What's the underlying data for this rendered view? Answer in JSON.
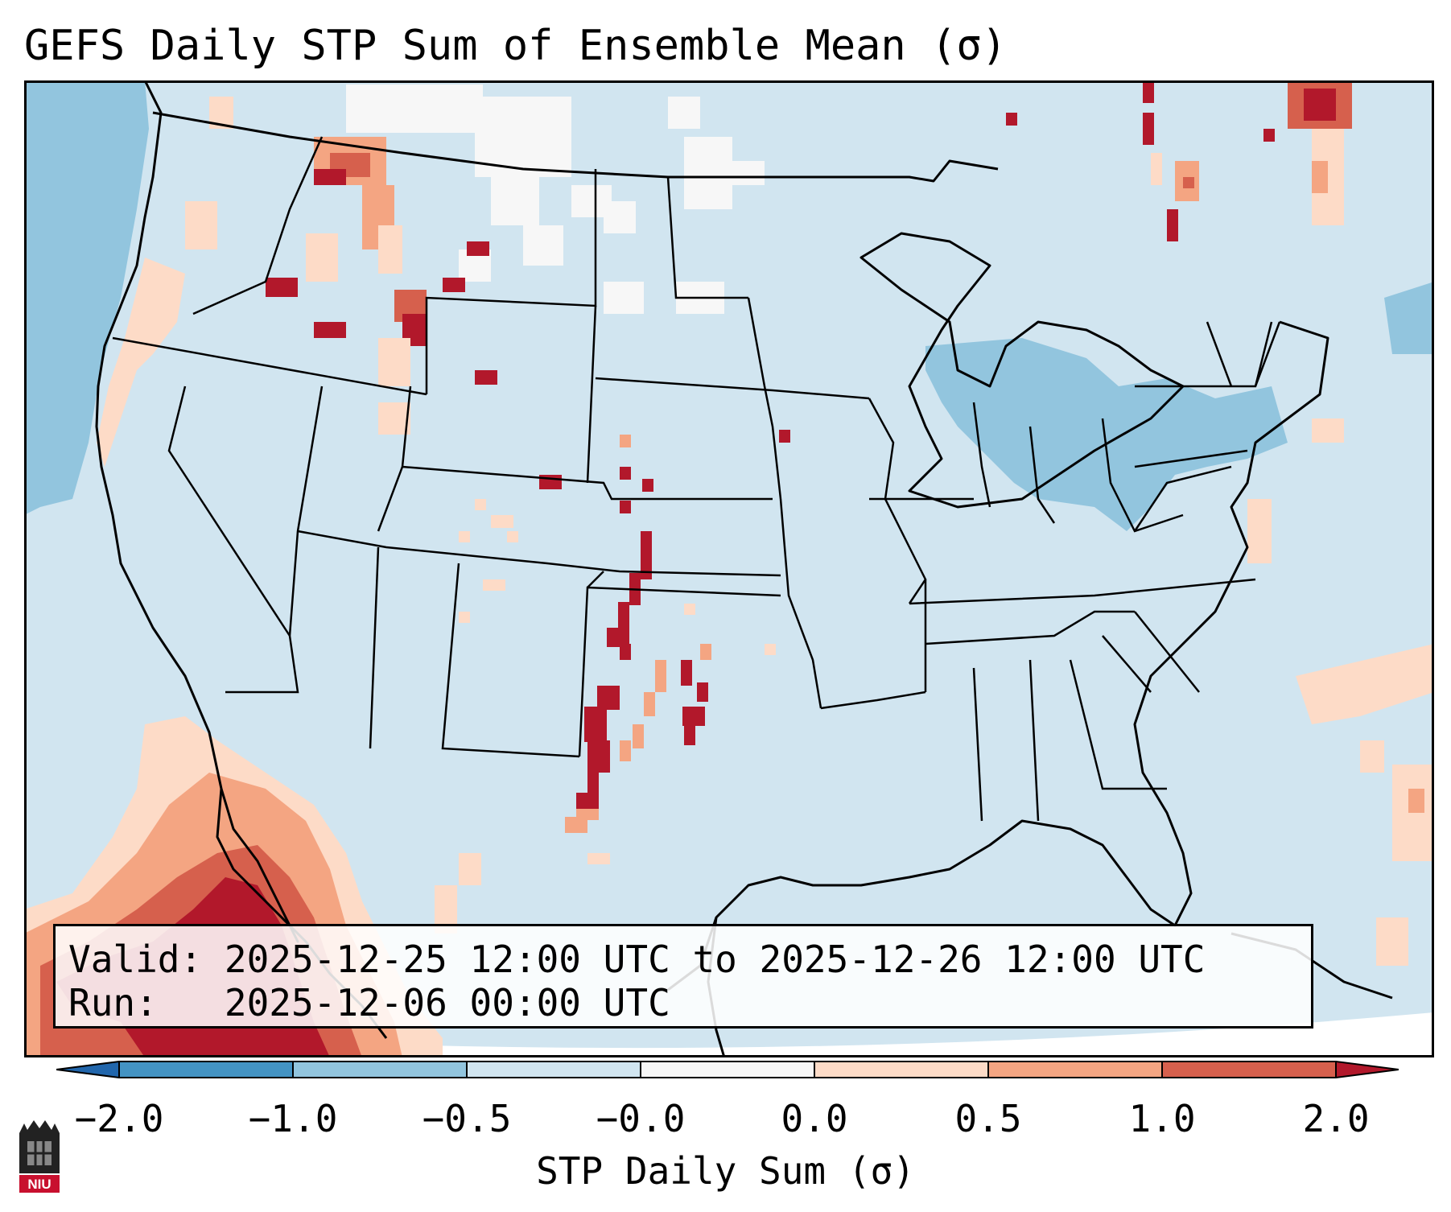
{
  "title": "GEFS Daily STP Sum of Ensemble Mean (σ)",
  "info": {
    "valid_label": "Valid:",
    "valid_value": "2025-12-25 12:00 UTC to 2025-12-26 12:00 UTC",
    "run_label": "Run:",
    "run_value": "2025-12-06 00:00 UTC"
  },
  "colorbar": {
    "label": "STP Daily Sum (σ)",
    "ticks": [
      "−2.0",
      "−1.0",
      "−0.5",
      "−0.0",
      "0.0",
      "0.5",
      "1.0",
      "2.0"
    ],
    "colors": {
      "below_min": "#2166ac",
      "neg_strong": "#4393c3",
      "neg_mid": "#92c5de",
      "neg_weak": "#d1e5f0",
      "zero": "#f7f7f7",
      "pos_weak": "#fddbc7",
      "pos_mid": "#f4a582",
      "pos_strong": "#d6604d",
      "above_max": "#b2182b"
    }
  },
  "logo": {
    "text": "NIU",
    "color": "#c8102e"
  }
}
